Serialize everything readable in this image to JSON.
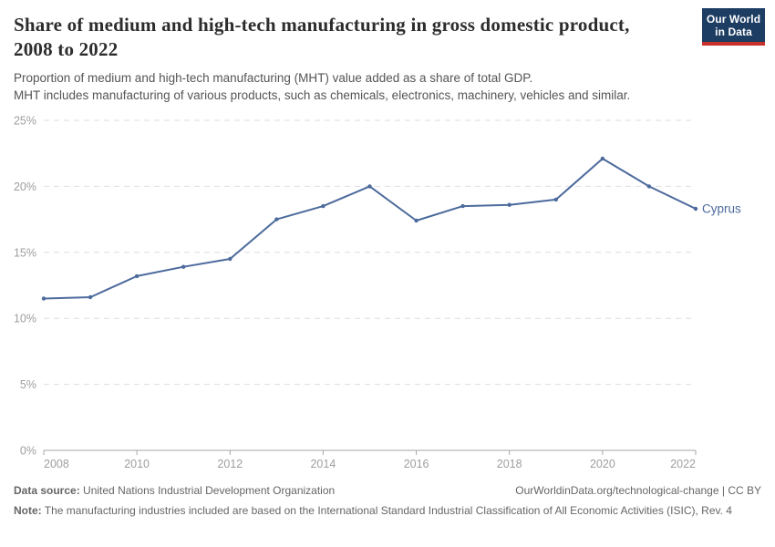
{
  "header": {
    "title": "Share of medium and high-tech manufacturing in gross domestic product, 2008 to 2022",
    "subtitle_lines": [
      "Proportion of medium and high-tech manufacturing (MHT) value added as a share of total GDP.",
      "MHT includes manufacturing of various products, such as chemicals, electronics, machinery, vehicles and similar."
    ]
  },
  "logo": {
    "line1": "Our World",
    "line2": "in Data",
    "bg_color": "#1d3d63",
    "accent_color": "#c7302b"
  },
  "chart_data": {
    "type": "line",
    "title": "Share of medium and high-tech manufacturing in gross domestic product, 2008 to 2022",
    "x": [
      2008,
      2009,
      2010,
      2011,
      2012,
      2013,
      2014,
      2015,
      2016,
      2017,
      2018,
      2019,
      2020,
      2021,
      2022
    ],
    "series": [
      {
        "name": "Cyprus",
        "color": "#4c6a9c",
        "values": [
          11.5,
          11.6,
          13.2,
          13.9,
          14.5,
          17.5,
          18.5,
          20.0,
          17.4,
          18.5,
          18.6,
          19.0,
          22.1,
          20.0,
          18.3
        ]
      }
    ],
    "xlabel": "",
    "ylabel": "",
    "ylim": [
      0,
      25
    ],
    "yticks": [
      0,
      5,
      10,
      15,
      20,
      25
    ],
    "ytick_format": "{}%",
    "xticks": [
      2008,
      2010,
      2012,
      2014,
      2016,
      2018,
      2020,
      2022
    ],
    "grid": "horizontal-dashed",
    "legend_position": "end-of-line-label"
  },
  "footer": {
    "source_label": "Data source:",
    "source_text": "United Nations Industrial Development Organization",
    "citation": "OurWorldinData.org/technological-change | CC BY",
    "note_label": "Note:",
    "note_text": "The manufacturing industries included are based on the International Standard Industrial Classification of All Economic Activities (ISIC), Rev. 4"
  }
}
